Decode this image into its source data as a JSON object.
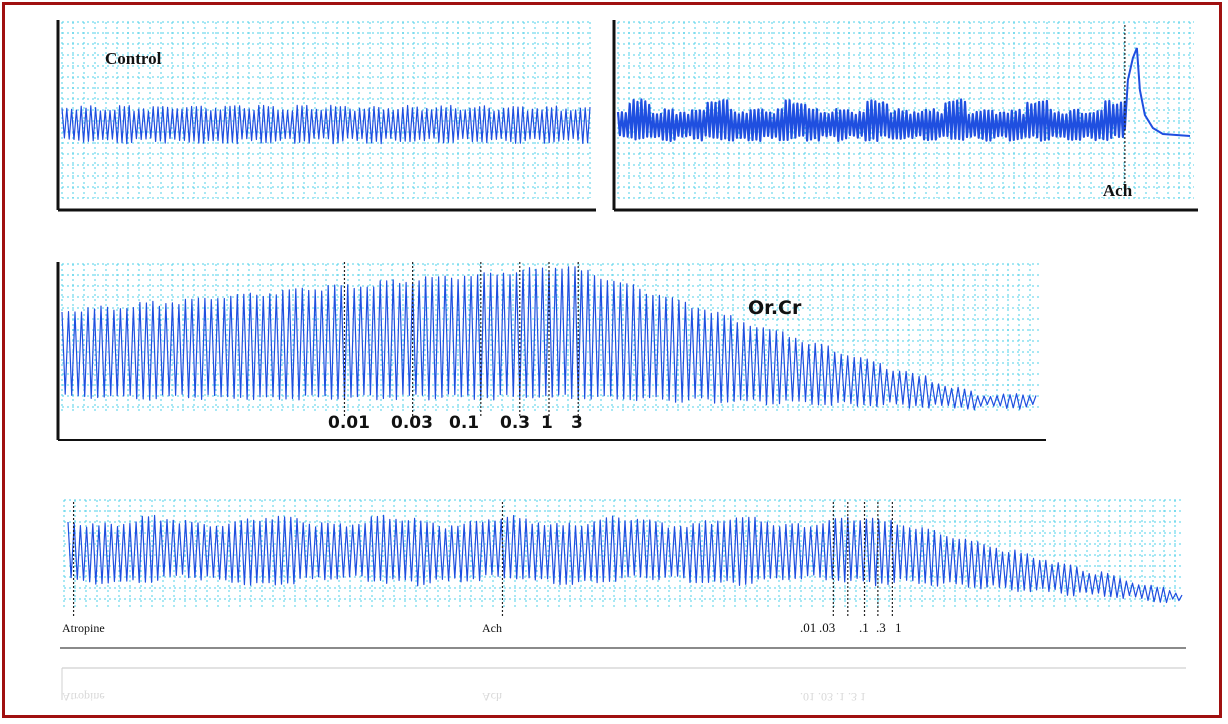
{
  "chart_data": [
    {
      "type": "line",
      "panel": "control",
      "label": "Control",
      "description_markers": [],
      "trace": {
        "baseline": 0.52,
        "amplitude": 0.18,
        "cycles": 110
      },
      "grid": true
    },
    {
      "type": "line",
      "panel": "ach",
      "markers": [
        {
          "label": "Ach",
          "at": 0.88
        }
      ],
      "trace": {
        "baseline": 0.62,
        "amplitude": 0.18,
        "peak": 0.95,
        "cycles": 130
      },
      "grid": true
    },
    {
      "type": "line",
      "panel": "or_cr",
      "label": "Or.Cr",
      "markers": [
        {
          "label": "0.01",
          "at": 0.29
        },
        {
          "label": "0.03",
          "at": 0.36
        },
        {
          "label": "0.1",
          "at": 0.43
        },
        {
          "label": "0.3",
          "at": 0.47
        },
        {
          "label": "1",
          "at": 0.5
        },
        {
          "label": "3",
          "at": 0.53
        }
      ],
      "trace": {
        "peak_at": 0.52,
        "cycles": 150
      },
      "grid": true
    },
    {
      "type": "line",
      "panel": "atropine",
      "markers": [
        {
          "label": "Atropine",
          "at": 0.005
        },
        {
          "label": "Ach",
          "at": 0.39
        },
        {
          "label": ".01",
          "at": 0.687
        },
        {
          "label": ".03",
          "at": 0.7
        },
        {
          "label": ".1",
          "at": 0.715
        },
        {
          "label": ".3",
          "at": 0.727
        },
        {
          "label": "1",
          "at": 0.74
        }
      ],
      "ghost_labels": [
        {
          "label": "Atropine",
          "at": 0.005
        },
        {
          "label": "Ach",
          "at": 0.39
        },
        {
          "label": ".01 .03 .1 .3 1",
          "at": 0.687
        }
      ],
      "trace": {
        "decline_at": 0.74,
        "cycles": 180
      },
      "grid": true
    }
  ],
  "colors": {
    "trace": "#1f4fe0",
    "grid": "#4fd0e8",
    "border": "#a01010",
    "axis": "#111111"
  }
}
